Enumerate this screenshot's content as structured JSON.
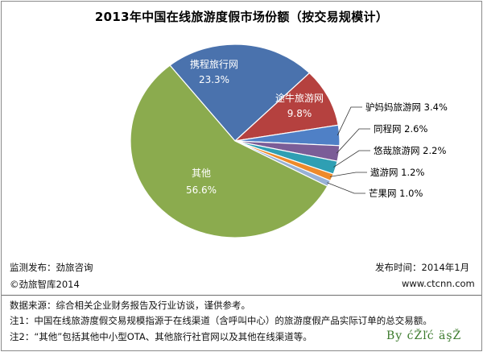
{
  "chart_data": {
    "type": "pie",
    "title": "2013年中国在线旅游度假市场份额（按交易规模计）",
    "slices": [
      {
        "label": "携程旅行网",
        "value": 23.3,
        "value_text": "23.3%",
        "color": "#4a72ad"
      },
      {
        "label": "途牛旅游网",
        "value": 9.8,
        "value_text": "9.8%",
        "color": "#b5413f"
      },
      {
        "label": "驴妈妈旅游网",
        "value": 3.4,
        "value_text": "3.4%",
        "color": "#4f80c6"
      },
      {
        "label": "同程网",
        "value": 2.6,
        "value_text": "2.6%",
        "color": "#7b5d97"
      },
      {
        "label": "悠哉旅游网",
        "value": 2.2,
        "value_text": "2.2%",
        "color": "#2f9fb3"
      },
      {
        "label": "遨游网",
        "value": 1.2,
        "value_text": "1.2%",
        "color": "#ee8a2a"
      },
      {
        "label": "芒果网",
        "value": 1.0,
        "value_text": "1.0%",
        "color": "#97b1d6"
      },
      {
        "label": "其他",
        "value": 56.6,
        "value_text": "56.6%",
        "color": "#8bab4e"
      }
    ]
  },
  "footer": {
    "source": "监测发布：劲旅咨询",
    "publish_time": "发布时间：2014年1月",
    "copyright": "©劲旅智库2014",
    "website": "www.ctcnn.com"
  },
  "notes": {
    "data_source": "数据来源：综合相关企业财务报告及行业访谈，谨供参考。",
    "note1": "注1：中国在线旅游度假交易规模指源于在线渠道（含呼叫中心）的旅游度假产品实际订单的总交易额。",
    "note2": "注2：“其他”包括其他中小型OTA、其他旅行社官网以及其他在线渠道等。"
  },
  "signature": "By  ćŽľć  äşŽ"
}
